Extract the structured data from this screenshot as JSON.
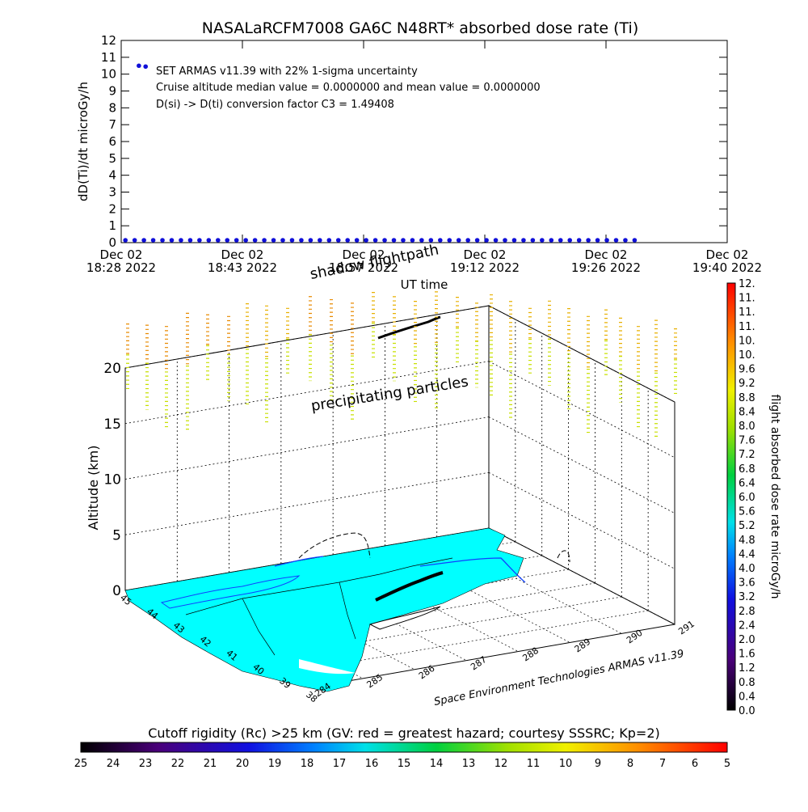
{
  "chart_data": [
    {
      "type": "scatter",
      "title": "NASALaRCFM7008   GA6C N48RT* absorbed dose rate (Ti)",
      "ylabel": "dD(Ti)/dt microGy/h",
      "xlabel": "UT time",
      "ylim": [
        0,
        12
      ],
      "y_ticks": [
        0,
        1,
        2,
        3,
        4,
        5,
        6,
        7,
        8,
        9,
        10,
        11,
        12
      ],
      "x_ticks": [
        {
          "line1": "Dec 02",
          "line2": "18:28 2022",
          "minutes": 0
        },
        {
          "line1": "Dec 02",
          "line2": "18:43 2022",
          "minutes": 14.4
        },
        {
          "line1": "Dec 02",
          "line2": "18:57 2022",
          "minutes": 28.8
        },
        {
          "line1": "Dec 02",
          "line2": "19:12 2022",
          "minutes": 43.2
        },
        {
          "line1": "Dec 02",
          "line2": "19:26 2022",
          "minutes": 57.6
        },
        {
          "line1": "Dec 02",
          "line2": "19:40 2022",
          "minutes": 72
        }
      ],
      "annotations": [
        "SET ARMAS v11.39 with 22% 1-sigma uncertainty",
        "Cruise altitude median value = 0.0000000 and mean value = 0.0000000",
        "D(si) -> D(ti) conversion factor C3 = 1.49408"
      ],
      "series": [
        {
          "color": "#1010d8",
          "points": [
            {
              "t": 2.1,
              "v": 10.5
            },
            {
              "t": 2.9,
              "v": 10.45
            },
            {
              "t": 0.5,
              "v": 0
            },
            {
              "t": 1.6,
              "v": 0
            },
            {
              "t": 2.7,
              "v": 0
            },
            {
              "t": 3.8,
              "v": 0
            },
            {
              "t": 4.9,
              "v": 0
            },
            {
              "t": 6.0,
              "v": 0
            },
            {
              "t": 7.1,
              "v": 0
            },
            {
              "t": 8.2,
              "v": 0
            },
            {
              "t": 9.3,
              "v": 0
            },
            {
              "t": 10.4,
              "v": 0
            },
            {
              "t": 11.5,
              "v": 0
            },
            {
              "t": 12.6,
              "v": 0
            },
            {
              "t": 13.7,
              "v": 0
            },
            {
              "t": 14.8,
              "v": 0
            },
            {
              "t": 15.9,
              "v": 0
            },
            {
              "t": 17.0,
              "v": 0
            },
            {
              "t": 18.1,
              "v": 0
            },
            {
              "t": 19.2,
              "v": 0
            },
            {
              "t": 20.3,
              "v": 0
            },
            {
              "t": 21.4,
              "v": 0
            },
            {
              "t": 22.5,
              "v": 0
            },
            {
              "t": 23.6,
              "v": 0
            },
            {
              "t": 24.7,
              "v": 0
            },
            {
              "t": 25.8,
              "v": 0
            },
            {
              "t": 26.9,
              "v": 0
            },
            {
              "t": 28.0,
              "v": 0
            },
            {
              "t": 29.1,
              "v": 0
            },
            {
              "t": 30.2,
              "v": 0
            },
            {
              "t": 31.3,
              "v": 0
            },
            {
              "t": 32.4,
              "v": 0
            },
            {
              "t": 33.5,
              "v": 0
            },
            {
              "t": 34.6,
              "v": 0
            },
            {
              "t": 35.7,
              "v": 0
            },
            {
              "t": 36.8,
              "v": 0
            },
            {
              "t": 37.9,
              "v": 0
            },
            {
              "t": 39.0,
              "v": 0
            },
            {
              "t": 40.1,
              "v": 0
            },
            {
              "t": 41.2,
              "v": 0
            },
            {
              "t": 42.3,
              "v": 0
            },
            {
              "t": 43.4,
              "v": 0
            },
            {
              "t": 44.5,
              "v": 0
            },
            {
              "t": 45.6,
              "v": 0
            },
            {
              "t": 46.7,
              "v": 0
            },
            {
              "t": 47.8,
              "v": 0
            },
            {
              "t": 48.9,
              "v": 0
            },
            {
              "t": 50.0,
              "v": 0
            },
            {
              "t": 51.1,
              "v": 0
            },
            {
              "t": 52.2,
              "v": 0
            },
            {
              "t": 53.3,
              "v": 0
            },
            {
              "t": 54.4,
              "v": 0
            },
            {
              "t": 55.5,
              "v": 0
            },
            {
              "t": 56.6,
              "v": 0
            },
            {
              "t": 57.7,
              "v": 0
            },
            {
              "t": 58.8,
              "v": 0
            },
            {
              "t": 59.9,
              "v": 0
            },
            {
              "t": 61.0,
              "v": 0
            }
          ]
        }
      ]
    },
    {
      "type": "3d-map",
      "zlabel": "Altitude (km)",
      "z_ticks": [
        0,
        5,
        10,
        15,
        20
      ],
      "lat_ticks": [
        "45",
        "44",
        "43",
        "42",
        "41",
        "40",
        "39",
        "38"
      ],
      "lon_ticks": [
        "284",
        "285",
        "286",
        "287",
        "288",
        "289",
        "290",
        "291"
      ],
      "labels": {
        "shadow": "shadow flightpath",
        "particles": "precipitating particles",
        "credit": "Space Environment Technologies ARMAS v11.39"
      },
      "colors": {
        "land": "#00ffff",
        "water": "#ffffff",
        "flight": "#000000"
      }
    },
    {
      "type": "colorbar",
      "orientation": "vertical",
      "label": "flight absorbed dose rate microGy/h",
      "tick_labels": [
        "0.0",
        "0.4",
        "0.8",
        "1.2",
        "1.6",
        "2.0",
        "2.4",
        "2.8",
        "3.2",
        "3.6",
        "4.0",
        "4.4",
        "4.8",
        "5.2",
        "5.6",
        "6.0",
        "6.4",
        "6.8",
        "7.2",
        "7.6",
        "8.0",
        "8.4",
        "8.8",
        "9.2",
        "9.6",
        "10.",
        "10.",
        "11.",
        "11.",
        "11.",
        "12."
      ]
    },
    {
      "type": "colorbar",
      "orientation": "horizontal",
      "label": "Cutoff rigidity (Rc) >25 km (GV: red = greatest hazard; courtesy SSSRC; Kp=2)",
      "tick_labels": [
        "25",
        "24",
        "23",
        "22",
        "21",
        "20",
        "19",
        "18",
        "17",
        "16",
        "15",
        "14",
        "13",
        "12",
        "11",
        "10",
        "9",
        "8",
        "7",
        "6",
        "5"
      ]
    }
  ]
}
